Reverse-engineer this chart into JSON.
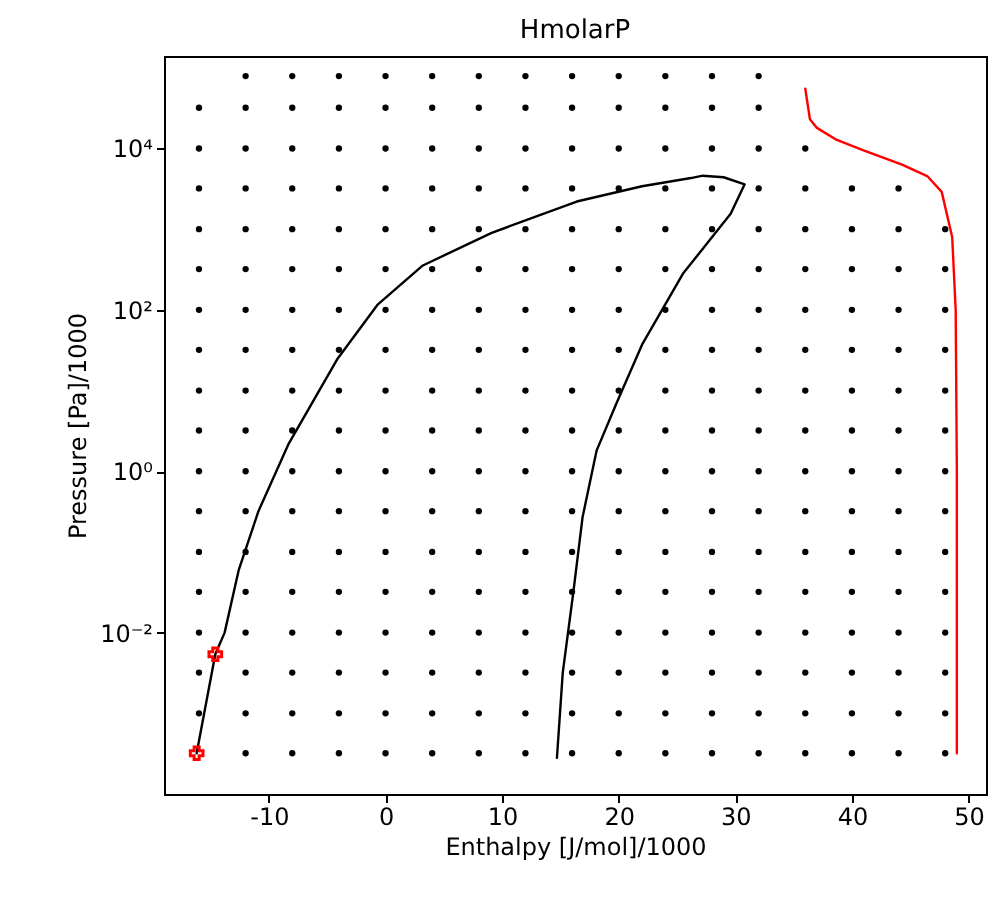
{
  "chart_data": {
    "type": "scatter",
    "title": "HmolarP",
    "xlabel": "Enthalpy [J/mol]/1000",
    "ylabel": "Pressure [Pa]/1000",
    "log": "y",
    "grid": false,
    "xlim": [
      -19,
      51.5
    ],
    "ylim": [
      0.0001,
      140000
    ],
    "xticks": [
      -10,
      0,
      10,
      20,
      30,
      40,
      50
    ],
    "yticks": [
      {
        "value": 0.01,
        "label": "10⁻²"
      },
      {
        "value": 1,
        "label": "10⁰"
      },
      {
        "value": 100,
        "label": "10²"
      },
      {
        "value": 10000,
        "label": "10⁴"
      }
    ],
    "series": [
      {
        "marker": "circle",
        "color": "#000000",
        "x": [
          -12,
          -8,
          -4,
          0,
          4,
          8,
          12,
          16,
          20,
          24,
          28,
          32,
          -16,
          -12,
          -8,
          -4,
          0,
          4,
          8,
          12,
          16,
          20,
          24,
          28,
          32,
          -16,
          -12,
          -8,
          -4,
          0,
          4,
          8,
          12,
          16,
          20,
          24,
          28,
          32,
          36,
          -16,
          -12,
          -8,
          -4,
          0,
          4,
          8,
          12,
          16,
          20,
          24,
          28,
          32,
          36,
          40,
          44,
          -16,
          -12,
          -8,
          -4,
          0,
          4,
          8,
          12,
          16,
          20,
          24,
          28,
          32,
          36,
          40,
          44,
          48,
          -16,
          -12,
          -8,
          -4,
          0,
          4,
          8,
          12,
          16,
          20,
          24,
          28,
          32,
          36,
          40,
          44,
          48
        ],
        "values": [
          79000,
          79000,
          79000,
          79000,
          79000,
          79000,
          79000,
          79000,
          79000,
          79000,
          79000,
          79000,
          32000,
          32000,
          32000,
          32000,
          32000,
          32000,
          32000,
          32000,
          32000,
          32000,
          32000,
          32000,
          32000,
          10000,
          10000,
          10000,
          10000,
          10000,
          10000,
          10000,
          10000,
          10000,
          10000,
          10000,
          10000,
          10000,
          10000,
          3200,
          3200,
          3200,
          3200,
          3200,
          3200,
          3200,
          3200,
          3200,
          3200,
          3200,
          3200,
          3200,
          3200,
          3200,
          3200,
          1000,
          1000,
          1000,
          1000,
          1000,
          1000,
          1000,
          1000,
          1000,
          1000,
          1000,
          1000,
          1000,
          1000,
          1000,
          1000,
          1000,
          320,
          320,
          320,
          320,
          320,
          320,
          320,
          320,
          320,
          320,
          320,
          320,
          320,
          320,
          320,
          320,
          320
        ]
      },
      {
        "marker": "circle",
        "color": "#000000",
        "x": [
          -16,
          -12,
          -8,
          -4,
          0,
          4,
          8,
          12,
          16,
          20,
          24,
          28,
          32,
          36,
          40,
          44,
          48,
          -16,
          -12,
          -8,
          -4,
          0,
          4,
          8,
          12,
          16,
          20,
          24,
          28,
          32,
          36,
          40,
          44,
          48,
          -16,
          -12,
          -8,
          -4,
          0,
          4,
          8,
          12,
          16,
          20,
          24,
          28,
          32,
          36,
          40,
          44,
          48,
          -16,
          -12,
          -8,
          -4,
          0,
          4,
          8,
          12,
          16,
          20,
          24,
          28,
          32,
          36,
          40,
          44,
          48,
          -16,
          -12,
          -8,
          -4,
          0,
          4,
          8,
          12,
          16,
          20,
          24,
          28,
          32,
          36,
          40,
          44,
          48,
          -16,
          -12,
          -8,
          -4,
          0,
          4,
          8,
          12,
          16,
          20,
          24,
          28,
          32,
          36,
          40,
          44,
          48
        ],
        "values": [
          100,
          100,
          100,
          100,
          100,
          100,
          100,
          100,
          100,
          100,
          100,
          100,
          100,
          100,
          100,
          100,
          100,
          32,
          32,
          32,
          32,
          32,
          32,
          32,
          32,
          32,
          32,
          32,
          32,
          32,
          32,
          32,
          32,
          32,
          10,
          10,
          10,
          10,
          10,
          10,
          10,
          10,
          10,
          10,
          10,
          10,
          10,
          10,
          10,
          10,
          10,
          3.2,
          3.2,
          3.2,
          3.2,
          3.2,
          3.2,
          3.2,
          3.2,
          3.2,
          3.2,
          3.2,
          3.2,
          3.2,
          3.2,
          3.2,
          3.2,
          3.2,
          1,
          1,
          1,
          1,
          1,
          1,
          1,
          1,
          1,
          1,
          1,
          1,
          1,
          1,
          1,
          1,
          1,
          0.32,
          0.32,
          0.32,
          0.32,
          0.32,
          0.32,
          0.32,
          0.32,
          0.32,
          0.32,
          0.32,
          0.32,
          0.32,
          0.32,
          0.32,
          0.32,
          0.32
        ]
      },
      {
        "marker": "circle",
        "color": "#000000",
        "x": [
          -16,
          -12,
          -8,
          -4,
          0,
          4,
          8,
          12,
          16,
          20,
          24,
          28,
          32,
          36,
          40,
          44,
          48,
          -16,
          -12,
          -8,
          -4,
          0,
          4,
          8,
          12,
          16,
          20,
          24,
          28,
          32,
          36,
          40,
          44,
          48,
          -16,
          -12,
          -8,
          -4,
          0,
          4,
          8,
          12,
          16,
          20,
          24,
          28,
          32,
          36,
          40,
          44,
          48,
          -16,
          -12,
          -8,
          -4,
          0,
          4,
          8,
          12,
          16,
          20,
          24,
          28,
          32,
          36,
          40,
          44,
          48,
          -16,
          -12,
          -8,
          -4,
          0,
          4,
          8,
          12,
          16,
          20,
          24,
          28,
          32,
          36,
          40,
          44,
          48,
          -12,
          -8,
          -4,
          0,
          4,
          8,
          12,
          16,
          20,
          24,
          28,
          32,
          36,
          40,
          44,
          48
        ],
        "values": [
          0.1,
          0.1,
          0.1,
          0.1,
          0.1,
          0.1,
          0.1,
          0.1,
          0.1,
          0.1,
          0.1,
          0.1,
          0.1,
          0.1,
          0.1,
          0.1,
          0.1,
          0.032,
          0.032,
          0.032,
          0.032,
          0.032,
          0.032,
          0.032,
          0.032,
          0.032,
          0.032,
          0.032,
          0.032,
          0.032,
          0.032,
          0.032,
          0.032,
          0.032,
          0.01,
          0.01,
          0.01,
          0.01,
          0.01,
          0.01,
          0.01,
          0.01,
          0.01,
          0.01,
          0.01,
          0.01,
          0.01,
          0.01,
          0.01,
          0.01,
          0.01,
          0.0032,
          0.0032,
          0.0032,
          0.0032,
          0.0032,
          0.0032,
          0.0032,
          0.0032,
          0.0032,
          0.0032,
          0.0032,
          0.0032,
          0.0032,
          0.0032,
          0.0032,
          0.0032,
          0.0032,
          0.001,
          0.001,
          0.001,
          0.001,
          0.001,
          0.001,
          0.001,
          0.001,
          0.001,
          0.001,
          0.001,
          0.001,
          0.001,
          0.001,
          0.001,
          0.001,
          0.001,
          0.00032,
          0.00032,
          0.00032,
          0.00032,
          0.00032,
          0.00032,
          0.00032,
          0.00032,
          0.00032,
          0.00032,
          0.00032,
          0.00032,
          0.00032,
          0.00032,
          0.00032,
          0.00032
        ]
      },
      {
        "type": "line",
        "marker": "none",
        "color": "#000000",
        "x": [
          -16.2,
          -14.6,
          -13.8,
          -12.6,
          -10.9,
          -8.3,
          -4.1,
          -0.7,
          3.2,
          9.1,
          16.4,
          22,
          26.2,
          27.2,
          29,
          30.8,
          29.6,
          25.5,
          22,
          19.8,
          18.1,
          16.9,
          16.1,
          15.2,
          14.7
        ],
        "values": [
          0.00032,
          0.0054,
          0.01,
          0.059,
          0.32,
          2.2,
          25,
          115,
          355,
          900,
          2200,
          3400,
          4300,
          4600,
          4400,
          3600,
          1550,
          280,
          37,
          6.9,
          1.8,
          0.27,
          0.031,
          0.0032,
          0.00028
        ]
      },
      {
        "type": "line",
        "marker": "none",
        "color": "#ff0000",
        "x": [
          49,
          49,
          49,
          48.9,
          48.6,
          47.7,
          46.5,
          44.3,
          41,
          38.6,
          37,
          36.4,
          36
        ],
        "values": [
          0.00032,
          0.01,
          1,
          100,
          800,
          2900,
          4500,
          6300,
          9500,
          13000,
          18000,
          23000,
          55000
        ]
      },
      {
        "marker": "cross",
        "color": "#ff0000",
        "x": [
          -16.2,
          -14.6
        ],
        "values": [
          0.00032,
          0.0054
        ]
      }
    ]
  }
}
